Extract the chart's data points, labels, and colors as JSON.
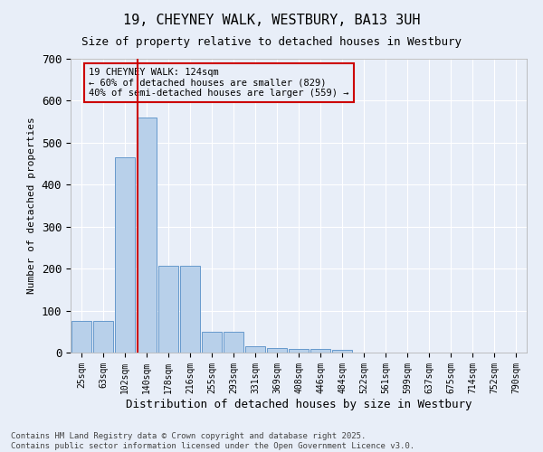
{
  "title": "19, CHEYNEY WALK, WESTBURY, BA13 3UH",
  "subtitle": "Size of property relative to detached houses in Westbury",
  "xlabel": "Distribution of detached houses by size in Westbury",
  "ylabel": "Number of detached properties",
  "bar_categories": [
    "25sqm",
    "63sqm",
    "102sqm",
    "140sqm",
    "178sqm",
    "216sqm",
    "255sqm",
    "293sqm",
    "331sqm",
    "369sqm",
    "408sqm",
    "446sqm",
    "484sqm",
    "522sqm",
    "561sqm",
    "599sqm",
    "637sqm",
    "675sqm",
    "714sqm",
    "752sqm",
    "790sqm"
  ],
  "bar_values": [
    75,
    75,
    465,
    560,
    207,
    207,
    50,
    50,
    15,
    10,
    8,
    8,
    7,
    0,
    0,
    0,
    0,
    0,
    0,
    0,
    0
  ],
  "bar_color": "#b8d0ea",
  "bar_edge_color": "#6699cc",
  "background_color": "#e8eef8",
  "grid_color": "#ffffff",
  "vline_color": "#cc0000",
  "annotation_text": "19 CHEYNEY WALK: 124sqm\n← 60% of detached houses are smaller (829)\n40% of semi-detached houses are larger (559) →",
  "annotation_box_color": "#cc0000",
  "footer_text": "Contains HM Land Registry data © Crown copyright and database right 2025.\nContains public sector information licensed under the Open Government Licence v3.0.",
  "ylim": [
    0,
    700
  ],
  "yticks": [
    0,
    100,
    200,
    300,
    400,
    500,
    600,
    700
  ],
  "title_fontsize": 11,
  "subtitle_fontsize": 9
}
